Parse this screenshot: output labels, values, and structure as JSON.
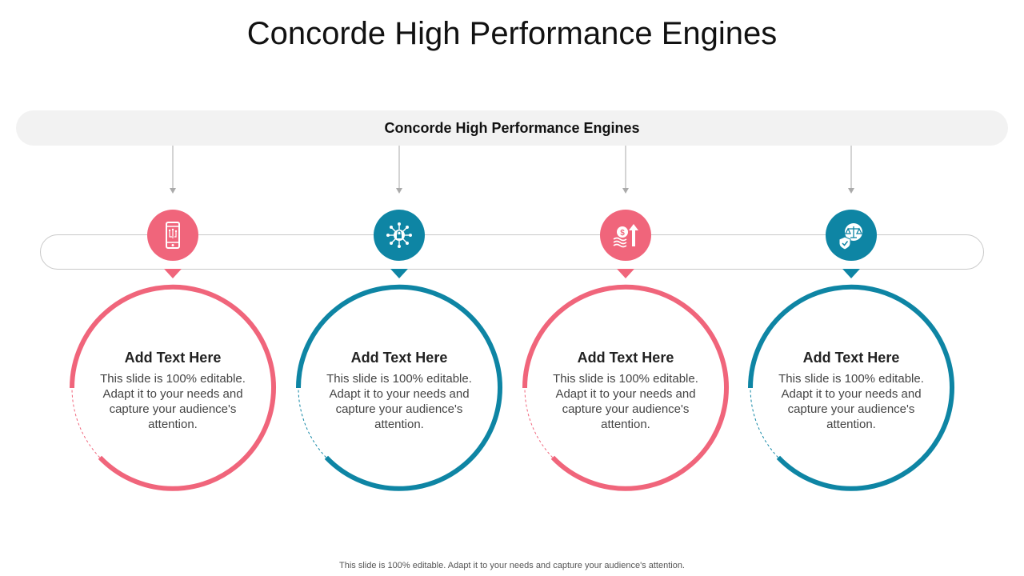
{
  "title": "Concorde High Performance Engines",
  "banner": {
    "label": "Concorde High Performance Engines"
  },
  "colors": {
    "pink": "#f0657b",
    "teal": "#0e85a4",
    "banner_bg": "#f2f2f2",
    "track": "#c8c8c8"
  },
  "steps": [
    {
      "icon": "smartphone-chip-icon",
      "color": "pink",
      "heading": "Add Text Here",
      "body": "This slide is 100% editable. Adapt it to your needs and capture your audience's attention."
    },
    {
      "icon": "network-lock-icon",
      "color": "teal",
      "heading": "Add Text Here",
      "body": "This slide is 100% editable. Adapt it to your needs and capture your audience's attention."
    },
    {
      "icon": "money-growth-arrow-icon",
      "color": "pink",
      "heading": "Add Text Here",
      "body": "This slide is 100% editable. Adapt it to your needs and capture your audience's attention."
    },
    {
      "icon": "shield-scales-icon",
      "color": "teal",
      "heading": "Add Text Here",
      "body": "This slide is 100% editable. Adapt it to your needs and capture your audience's attention."
    }
  ],
  "footer": "This slide is 100% editable. Adapt it to your needs and capture your audience's attention."
}
